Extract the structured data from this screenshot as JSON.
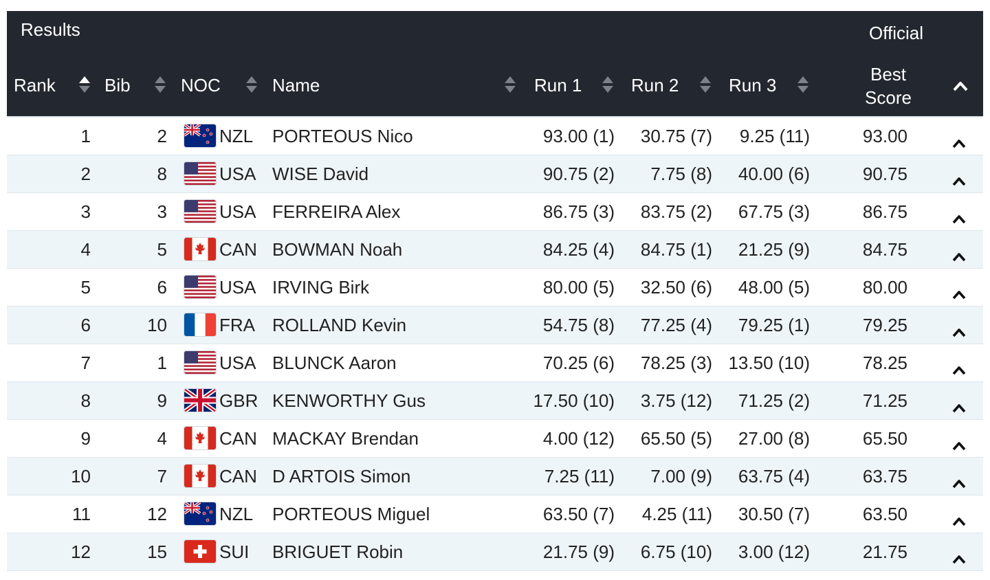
{
  "header": {
    "title": "Results",
    "status": "Official",
    "columns": {
      "rank": "Rank",
      "bib": "Bib",
      "noc": "NOC",
      "name": "Name",
      "run1": "Run 1",
      "run2": "Run 2",
      "run3": "Run 3",
      "best_line1": "Best",
      "best_line2": "Score"
    }
  },
  "icons": {
    "sort": "sort-icon",
    "collapse": "chevron-up-icon"
  },
  "colors": {
    "header_bg": "#232830",
    "row_alt_bg": "#eef5f9"
  },
  "rows": [
    {
      "rank": "1",
      "bib": "2",
      "noc": "NZL",
      "flag": "nzl",
      "name": "PORTEOUS Nico",
      "run1": "93.00 (1)",
      "run2": "30.75 (7)",
      "run3": "9.25 (11)",
      "best": "93.00"
    },
    {
      "rank": "2",
      "bib": "8",
      "noc": "USA",
      "flag": "usa",
      "name": "WISE David",
      "run1": "90.75 (2)",
      "run2": "7.75 (8)",
      "run3": "40.00 (6)",
      "best": "90.75"
    },
    {
      "rank": "3",
      "bib": "3",
      "noc": "USA",
      "flag": "usa",
      "name": "FERREIRA Alex",
      "run1": "86.75 (3)",
      "run2": "83.75 (2)",
      "run3": "67.75 (3)",
      "best": "86.75"
    },
    {
      "rank": "4",
      "bib": "5",
      "noc": "CAN",
      "flag": "can",
      "name": "BOWMAN Noah",
      "run1": "84.25 (4)",
      "run2": "84.75 (1)",
      "run3": "21.25 (9)",
      "best": "84.75"
    },
    {
      "rank": "5",
      "bib": "6",
      "noc": "USA",
      "flag": "usa",
      "name": "IRVING Birk",
      "run1": "80.00 (5)",
      "run2": "32.50 (6)",
      "run3": "48.00 (5)",
      "best": "80.00"
    },
    {
      "rank": "6",
      "bib": "10",
      "noc": "FRA",
      "flag": "fra",
      "name": "ROLLAND Kevin",
      "run1": "54.75 (8)",
      "run2": "77.25 (4)",
      "run3": "79.25 (1)",
      "best": "79.25"
    },
    {
      "rank": "7",
      "bib": "1",
      "noc": "USA",
      "flag": "usa",
      "name": "BLUNCK Aaron",
      "run1": "70.25 (6)",
      "run2": "78.25 (3)",
      "run3": "13.50 (10)",
      "best": "78.25"
    },
    {
      "rank": "8",
      "bib": "9",
      "noc": "GBR",
      "flag": "gbr",
      "name": "KENWORTHY Gus",
      "run1": "17.50 (10)",
      "run2": "3.75 (12)",
      "run3": "71.25 (2)",
      "best": "71.25"
    },
    {
      "rank": "9",
      "bib": "4",
      "noc": "CAN",
      "flag": "can",
      "name": "MACKAY Brendan",
      "run1": "4.00 (12)",
      "run2": "65.50 (5)",
      "run3": "27.00 (8)",
      "best": "65.50"
    },
    {
      "rank": "10",
      "bib": "7",
      "noc": "CAN",
      "flag": "can",
      "name": "D ARTOIS Simon",
      "run1": "7.25 (11)",
      "run2": "7.00 (9)",
      "run3": "63.75 (4)",
      "best": "63.75"
    },
    {
      "rank": "11",
      "bib": "12",
      "noc": "NZL",
      "flag": "nzl",
      "name": "PORTEOUS Miguel",
      "run1": "63.50 (7)",
      "run2": "4.25 (11)",
      "run3": "30.50 (7)",
      "best": "63.50"
    },
    {
      "rank": "12",
      "bib": "15",
      "noc": "SUI",
      "flag": "sui",
      "name": "BRIGUET Robin",
      "run1": "21.75 (9)",
      "run2": "6.75 (10)",
      "run3": "3.00 (12)",
      "best": "21.75"
    }
  ]
}
